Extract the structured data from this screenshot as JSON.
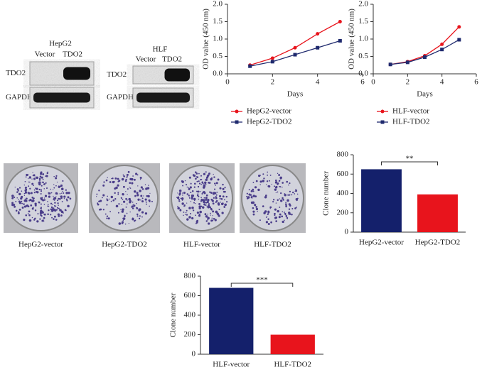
{
  "blots": [
    {
      "title": "HepG2",
      "lanes": [
        "Vector",
        "TDO2"
      ],
      "rows": [
        "TDO2",
        "GAPDH"
      ]
    },
    {
      "title": "HLF",
      "lanes": [
        "Vector",
        "TDO2"
      ],
      "rows": [
        "TDO2",
        "GAPDH"
      ]
    }
  ],
  "colonies": [
    "HepG2-vector",
    "HepG2-TDO2",
    "HLF-vector",
    "HLF-TDO2"
  ],
  "chart_data": [
    {
      "type": "line",
      "x_label": "Days",
      "y_label": "OD value (450 nm)",
      "x": [
        1,
        2,
        3,
        4,
        5
      ],
      "series": [
        {
          "name": "HepG2-vector",
          "color": "#e8141c",
          "values": [
            0.25,
            0.45,
            0.75,
            1.15,
            1.5
          ]
        },
        {
          "name": "HepG2-TDO2",
          "color": "#1f2a6e",
          "values": [
            0.22,
            0.35,
            0.55,
            0.75,
            0.95
          ]
        }
      ],
      "xlim": [
        0,
        6
      ],
      "xticks": [
        0,
        2,
        4,
        6
      ],
      "ylim": [
        0,
        2
      ],
      "yticks": [
        {
          "value": 0,
          "label": "0.0"
        },
        0.5,
        {
          "value": 1,
          "label": "1.0"
        },
        1.5,
        {
          "value": 2,
          "label": "2.0"
        }
      ]
    },
    {
      "type": "line",
      "x_label": "Days",
      "y_label": "OD value (450 nm)",
      "x": [
        1,
        2,
        3,
        4,
        5
      ],
      "series": [
        {
          "name": "HLF-vector",
          "color": "#e8141c",
          "values": [
            0.27,
            0.35,
            0.52,
            0.85,
            1.35
          ]
        },
        {
          "name": "HLF-TDO2",
          "color": "#1f2a6e",
          "values": [
            0.27,
            0.33,
            0.48,
            0.7,
            0.98
          ]
        }
      ],
      "xlim": [
        0,
        6
      ],
      "xticks": [
        0,
        2,
        4,
        6
      ],
      "ylim": [
        0,
        2
      ],
      "yticks": [
        {
          "value": 0,
          "label": "0.0"
        },
        0.5,
        {
          "value": 1,
          "label": "1.0"
        },
        1.5,
        {
          "value": 2,
          "label": "2.0"
        }
      ]
    },
    {
      "type": "bar",
      "y_label": "Clone number",
      "annotation": "**",
      "categories": [
        "HepG2-vector",
        "HepG2-TDO2"
      ],
      "values": [
        650,
        390
      ],
      "colors": [
        "#14206b",
        "#e8141c"
      ],
      "ylim": [
        0,
        800
      ],
      "yticks": [
        0,
        200,
        400,
        600,
        800
      ]
    },
    {
      "type": "bar",
      "y_label": "Clone number",
      "annotation": "***",
      "categories": [
        "HLF-vector",
        "HLF-TDO2"
      ],
      "values": [
        680,
        200
      ],
      "colors": [
        "#14206b",
        "#e8141c"
      ],
      "ylim": [
        0,
        800
      ],
      "yticks": [
        0,
        200,
        400,
        600,
        800
      ]
    }
  ]
}
